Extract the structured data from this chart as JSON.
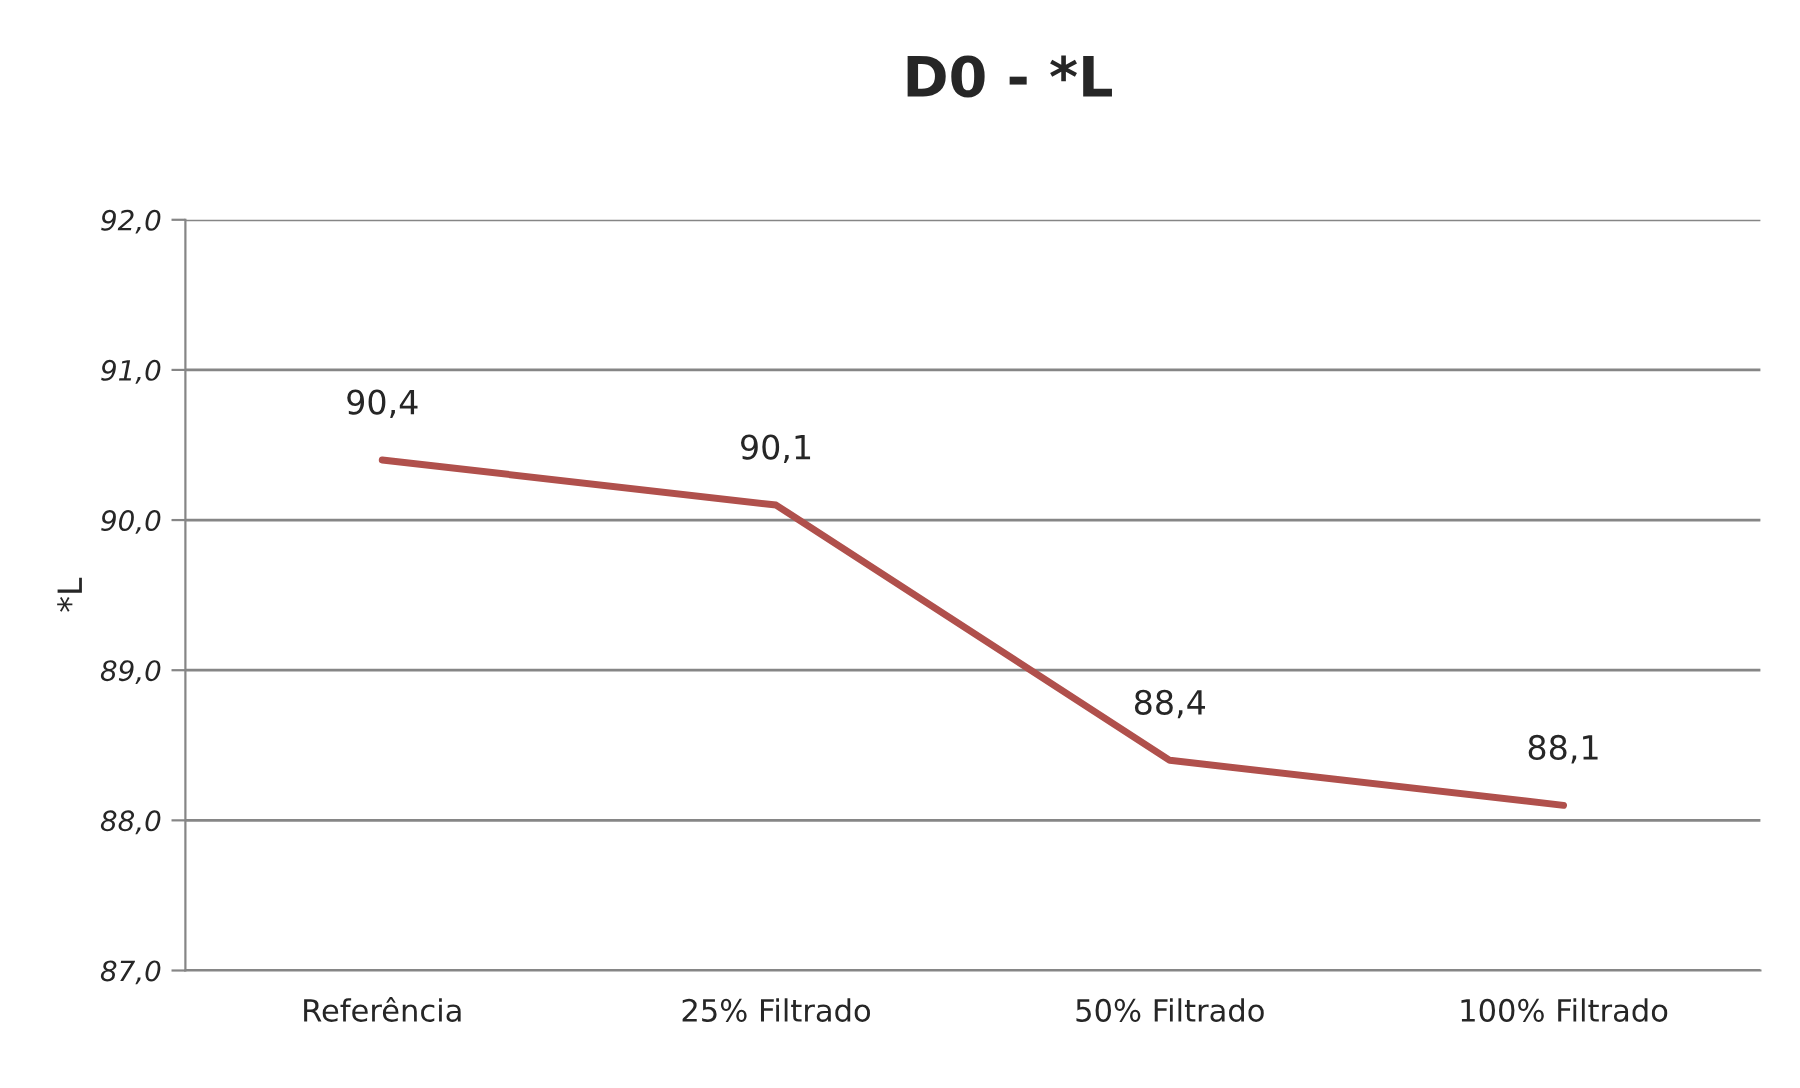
{
  "chart_data": {
    "type": "line",
    "title": "D0 - *L",
    "ylabel": "*L",
    "categories": [
      "Referência",
      "25% Filtrado",
      "50% Filtrado",
      "100% Filtrado"
    ],
    "series": [
      {
        "color": "#b0504c",
        "values": [
          90.4,
          90.1,
          88.4,
          88.1
        ],
        "value_labels": [
          "90,4",
          "90,1",
          "88,4",
          "88,1"
        ]
      }
    ],
    "ylim": [
      87,
      92
    ],
    "yticks": [
      {
        "value": 87,
        "label": "87,0"
      },
      {
        "value": 88,
        "label": "88,0"
      },
      {
        "value": 89,
        "label": "89,0"
      },
      {
        "value": 90,
        "label": "90,0"
      },
      {
        "value": 91,
        "label": "91,0"
      },
      {
        "value": 92,
        "label": "92,0"
      }
    ],
    "grid": "y",
    "marker": "none",
    "line_style": "solid"
  }
}
